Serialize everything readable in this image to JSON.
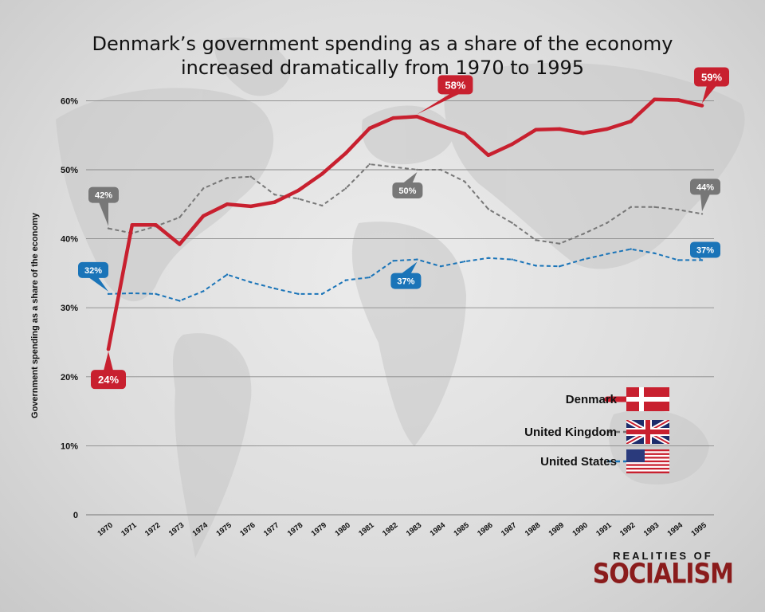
{
  "title_line1": "Denmark’s government spending as a share of the economy",
  "title_line2": "increased dramatically from 1970 to 1995",
  "logo": {
    "line1": "REALITIES OF",
    "line2": "SOCIALISM"
  },
  "colors": {
    "denmark": "#c8202f",
    "uk": "#777777",
    "us": "#1a74b8",
    "grid": "#8a8a8a"
  },
  "chart_data": {
    "type": "line",
    "title": "Denmark’s government spending as a share of the economy increased dramatically from 1970 to 1995",
    "ylabel": "Government spending as a share of the economy",
    "xlabel": "",
    "ylim": [
      0,
      60
    ],
    "grid": true,
    "legend_position": "bottom-right",
    "y_ticks": [
      0,
      10,
      20,
      30,
      40,
      50,
      60
    ],
    "y_tick_labels": [
      "0",
      "10%",
      "20%",
      "30%",
      "40%",
      "50%",
      "60%"
    ],
    "categories": [
      "1970",
      "1971",
      "1972",
      "1973",
      "1974",
      "1975",
      "1976",
      "1977",
      "1978",
      "1979",
      "1980",
      "1981",
      "1982",
      "1983",
      "1984",
      "1985",
      "1986",
      "1987",
      "1988",
      "1989",
      "1990",
      "1991",
      "1992",
      "1993",
      "1994",
      "1995"
    ],
    "series": [
      {
        "name": "Denmark",
        "key": "denmark",
        "style": "solid",
        "values": [
          24,
          42,
          42,
          39.2,
          43.3,
          45,
          44.7,
          45.3,
          47,
          49.4,
          52.4,
          56,
          57.5,
          57.7,
          56.4,
          55.2,
          52.1,
          53.7,
          55.8,
          55.9,
          55.3,
          55.9,
          57,
          60.2,
          60.1,
          59.3
        ]
      },
      {
        "name": "United Kingdom",
        "key": "uk",
        "style": "dashed",
        "values": [
          41.5,
          40.8,
          41.8,
          43.1,
          47.3,
          48.8,
          49,
          46.4,
          45.8,
          44.8,
          47.3,
          50.8,
          50.4,
          50,
          50,
          48.3,
          44.3,
          42.3,
          39.8,
          39.3,
          40.7,
          42.3,
          44.6,
          44.6,
          44.2,
          43.6
        ]
      },
      {
        "name": "United States",
        "key": "us",
        "style": "dashed",
        "values": [
          32,
          32.1,
          32,
          31,
          32.4,
          34.8,
          33.7,
          32.8,
          32,
          32,
          34,
          34.4,
          36.8,
          37,
          36,
          36.7,
          37.2,
          37,
          36.1,
          36,
          37,
          37.8,
          38.5,
          37.9,
          36.9,
          36.9
        ]
      }
    ],
    "annotations": [
      {
        "text": "24%",
        "series": "denmark",
        "year": "1970"
      },
      {
        "text": "58%",
        "series": "denmark",
        "year": "1983"
      },
      {
        "text": "59%",
        "series": "denmark",
        "year": "1995"
      },
      {
        "text": "42%",
        "series": "uk",
        "year": "1970"
      },
      {
        "text": "50%",
        "series": "uk",
        "year": "1983"
      },
      {
        "text": "44%",
        "series": "uk",
        "year": "1995"
      },
      {
        "text": "32%",
        "series": "us",
        "year": "1970"
      },
      {
        "text": "37%",
        "series": "us",
        "year": "1983"
      },
      {
        "text": "37%",
        "series": "us",
        "year": "1995"
      }
    ]
  },
  "legend": [
    {
      "label": "Denmark",
      "flag": "denmark-flag",
      "key": "denmark"
    },
    {
      "label": "United Kingdom",
      "flag": "uk-flag",
      "key": "uk"
    },
    {
      "label": "United States",
      "flag": "us-flag",
      "key": "us"
    }
  ]
}
